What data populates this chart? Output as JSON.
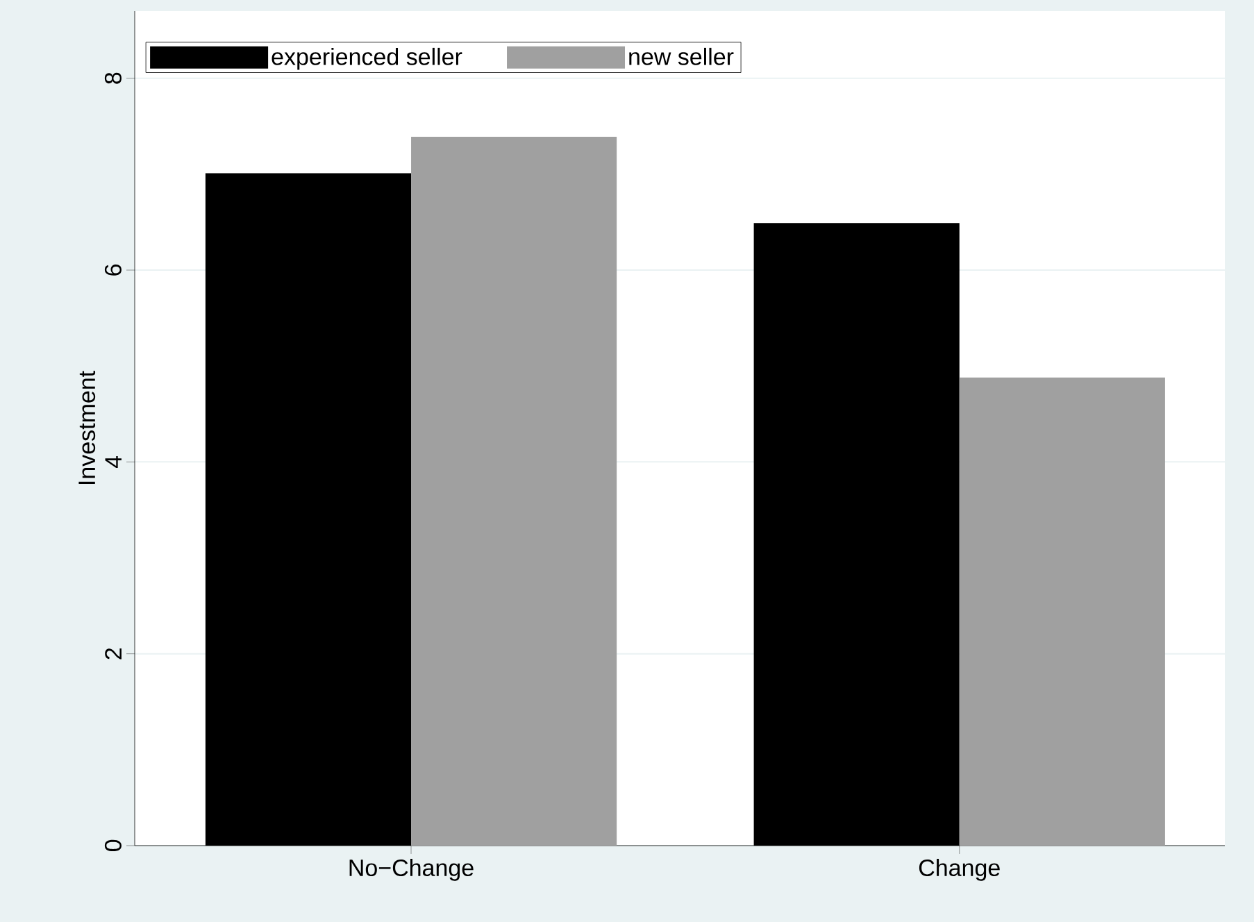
{
  "chart_data": {
    "type": "bar",
    "ylabel": "Investment",
    "categories": [
      "No−Change",
      "Change"
    ],
    "series": [
      {
        "name": "experienced seller",
        "color": "#000000",
        "values": [
          7.01,
          6.49
        ]
      },
      {
        "name": "new seller",
        "color": "#a0a0a0",
        "values": [
          7.39,
          4.88
        ]
      }
    ],
    "ylim": [
      0,
      8.7
    ],
    "yticks": [
      0,
      2,
      4,
      6,
      8
    ],
    "grid": "y",
    "legend": "top left"
  }
}
